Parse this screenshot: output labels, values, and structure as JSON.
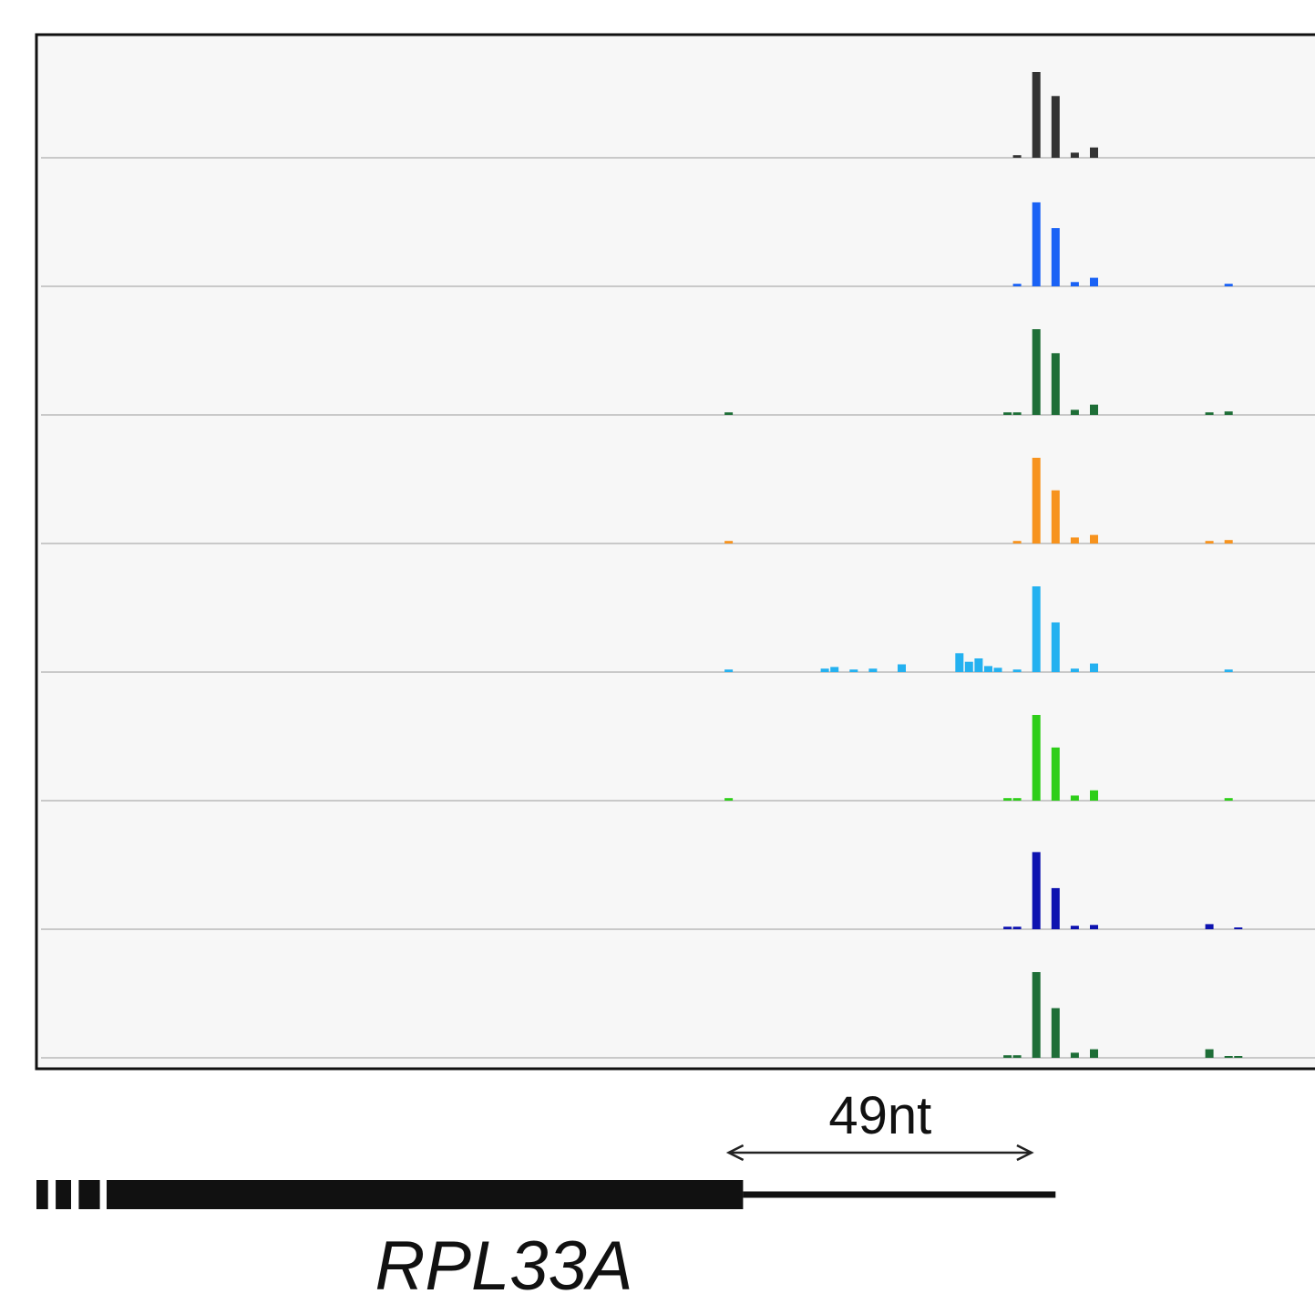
{
  "chart_data": {
    "type": "bar",
    "title": "",
    "xlabel": "",
    "ylabel": "",
    "grid": false,
    "x_units": "track bin",
    "x_range": [
      0,
      140
    ],
    "ylim": [
      0,
      1
    ],
    "series": [
      {
        "color": "#333333",
        "points": [
          {
            "x": 102,
            "y": 0.03
          },
          {
            "x": 104,
            "y": 1.0
          },
          {
            "x": 106,
            "y": 0.72
          },
          {
            "x": 108,
            "y": 0.06
          },
          {
            "x": 110,
            "y": 0.12
          }
        ]
      },
      {
        "color": "#1a62f5",
        "points": [
          {
            "x": 102,
            "y": 0.03
          },
          {
            "x": 104,
            "y": 0.98
          },
          {
            "x": 106,
            "y": 0.68
          },
          {
            "x": 108,
            "y": 0.05
          },
          {
            "x": 110,
            "y": 0.1
          },
          {
            "x": 124,
            "y": 0.03
          }
        ]
      },
      {
        "color": "#1e6e37",
        "points": [
          {
            "x": 72,
            "y": 0.03
          },
          {
            "x": 101,
            "y": 0.03
          },
          {
            "x": 102,
            "y": 0.03
          },
          {
            "x": 104,
            "y": 1.0
          },
          {
            "x": 106,
            "y": 0.72
          },
          {
            "x": 108,
            "y": 0.06
          },
          {
            "x": 110,
            "y": 0.12
          },
          {
            "x": 122,
            "y": 0.03
          },
          {
            "x": 124,
            "y": 0.04
          }
        ]
      },
      {
        "color": "#f7931e",
        "points": [
          {
            "x": 72,
            "y": 0.03
          },
          {
            "x": 102,
            "y": 0.03
          },
          {
            "x": 104,
            "y": 1.0
          },
          {
            "x": 106,
            "y": 0.62
          },
          {
            "x": 108,
            "y": 0.07
          },
          {
            "x": 110,
            "y": 0.1
          },
          {
            "x": 122,
            "y": 0.03
          },
          {
            "x": 124,
            "y": 0.04
          }
        ]
      },
      {
        "color": "#24b1f0",
        "points": [
          {
            "x": 72,
            "y": 0.03
          },
          {
            "x": 82,
            "y": 0.04
          },
          {
            "x": 83,
            "y": 0.06
          },
          {
            "x": 85,
            "y": 0.03
          },
          {
            "x": 87,
            "y": 0.04
          },
          {
            "x": 90,
            "y": 0.09
          },
          {
            "x": 96,
            "y": 0.22
          },
          {
            "x": 97,
            "y": 0.12
          },
          {
            "x": 98,
            "y": 0.16
          },
          {
            "x": 99,
            "y": 0.07
          },
          {
            "x": 100,
            "y": 0.05
          },
          {
            "x": 102,
            "y": 0.03
          },
          {
            "x": 104,
            "y": 1.0
          },
          {
            "x": 106,
            "y": 0.58
          },
          {
            "x": 108,
            "y": 0.04
          },
          {
            "x": 110,
            "y": 0.1
          },
          {
            "x": 124,
            "y": 0.03
          }
        ]
      },
      {
        "color": "#2ece19",
        "points": [
          {
            "x": 72,
            "y": 0.03
          },
          {
            "x": 101,
            "y": 0.03
          },
          {
            "x": 102,
            "y": 0.03
          },
          {
            "x": 104,
            "y": 1.0
          },
          {
            "x": 106,
            "y": 0.62
          },
          {
            "x": 108,
            "y": 0.06
          },
          {
            "x": 110,
            "y": 0.12
          },
          {
            "x": 124,
            "y": 0.03
          }
        ]
      },
      {
        "color": "#0e13b0",
        "points": [
          {
            "x": 101,
            "y": 0.03
          },
          {
            "x": 102,
            "y": 0.03
          },
          {
            "x": 104,
            "y": 0.9
          },
          {
            "x": 106,
            "y": 0.48
          },
          {
            "x": 108,
            "y": 0.04
          },
          {
            "x": 110,
            "y": 0.05
          },
          {
            "x": 122,
            "y": 0.06
          },
          {
            "x": 125,
            "y": 0.02
          }
        ]
      },
      {
        "color": "#1e6e37",
        "points": [
          {
            "x": 101,
            "y": 0.03
          },
          {
            "x": 102,
            "y": 0.03
          },
          {
            "x": 104,
            "y": 1.0
          },
          {
            "x": 106,
            "y": 0.58
          },
          {
            "x": 108,
            "y": 0.06
          },
          {
            "x": 110,
            "y": 0.1
          },
          {
            "x": 122,
            "y": 0.1
          },
          {
            "x": 124,
            "y": 0.02
          },
          {
            "x": 125,
            "y": 0.02
          }
        ]
      }
    ],
    "annotations": {
      "distance_label": "49nt",
      "distance_from_x": 72,
      "distance_to_x": 103.5
    },
    "gene_model": {
      "name": "RPL33A",
      "utr_dashes": [
        [
          0,
          1.2
        ],
        [
          2.0,
          3.6
        ],
        [
          4.4,
          6.6
        ]
      ],
      "cds_start_x": 7.3,
      "cds_end_x": 73.5,
      "intron_end_x": 106
    }
  }
}
